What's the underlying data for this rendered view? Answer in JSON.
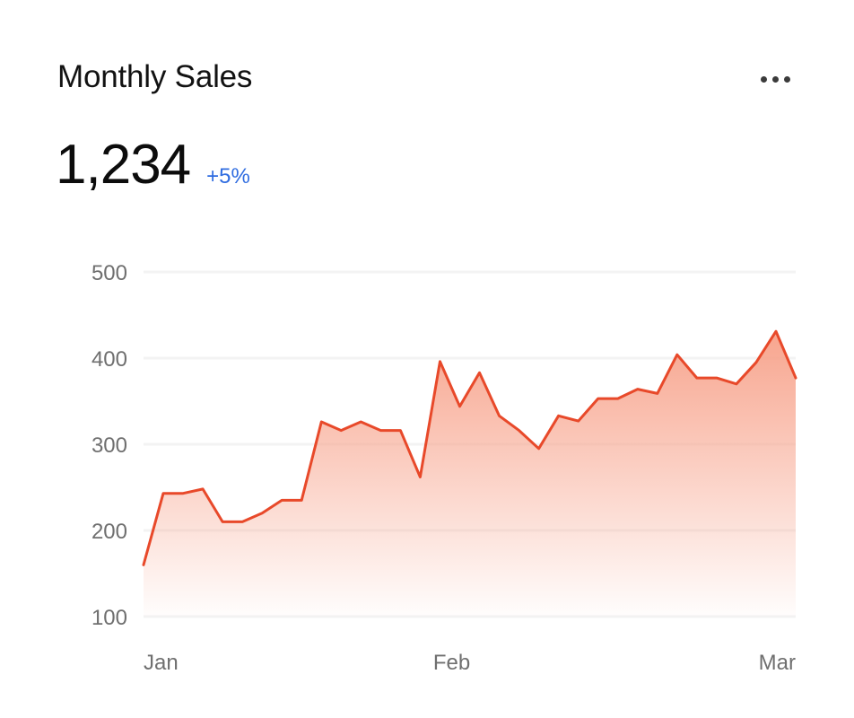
{
  "header": {
    "title": "Monthly Sales",
    "menu_icon": "more-horizontal-icon"
  },
  "summary": {
    "value": "1,234",
    "delta": "+5%"
  },
  "colors": {
    "line": "#e8492a",
    "fill": "#f7a088",
    "delta": "#2f6ce0",
    "grid": "#f3f3f3",
    "tick": "#6f6f6f"
  },
  "chart_data": {
    "type": "area",
    "title": "",
    "xlabel": "",
    "ylabel": "",
    "ylim": [
      100,
      500
    ],
    "yticks": [
      500,
      400,
      300,
      200,
      100
    ],
    "xtick_labels": [
      "Jan",
      "Feb",
      "Mar"
    ],
    "grid": true,
    "series": [
      {
        "values": [
          160,
          243,
          243,
          248,
          210,
          210,
          220,
          235,
          235,
          326,
          316,
          326,
          316,
          316,
          262,
          396,
          344,
          383,
          333,
          316,
          295,
          333,
          327,
          353,
          353,
          364,
          359,
          404,
          377,
          377,
          370,
          395,
          431,
          377
        ]
      }
    ]
  }
}
